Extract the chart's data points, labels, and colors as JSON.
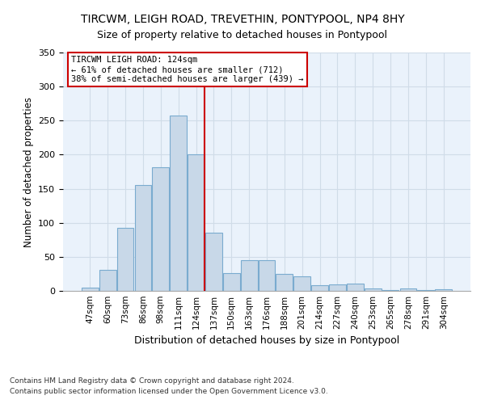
{
  "title": "TIRCWM, LEIGH ROAD, TREVETHIN, PONTYPOOL, NP4 8HY",
  "subtitle": "Size of property relative to detached houses in Pontypool",
  "xlabel": "Distribution of detached houses by size in Pontypool",
  "ylabel": "Number of detached properties",
  "categories": [
    "47sqm",
    "60sqm",
    "73sqm",
    "86sqm",
    "98sqm",
    "111sqm",
    "124sqm",
    "137sqm",
    "150sqm",
    "163sqm",
    "176sqm",
    "188sqm",
    "201sqm",
    "214sqm",
    "227sqm",
    "240sqm",
    "253sqm",
    "265sqm",
    "278sqm",
    "291sqm",
    "304sqm"
  ],
  "values": [
    5,
    31,
    93,
    155,
    181,
    258,
    200,
    85,
    26,
    45,
    45,
    25,
    21,
    8,
    10,
    11,
    4,
    1,
    3,
    1,
    2
  ],
  "bar_color": "#c8d8e8",
  "bar_edge_color": "#7aabcf",
  "marker_index": 6.5,
  "marker_label": "TIRCWM LEIGH ROAD: 124sqm",
  "marker_line_color": "#cc0000",
  "annotation_line1": "← 61% of detached houses are smaller (712)",
  "annotation_line2": "38% of semi-detached houses are larger (439) →",
  "annotation_box_color": "#ffffff",
  "annotation_box_edge": "#cc0000",
  "grid_color": "#d0dce8",
  "background_color": "#eaf2fb",
  "ylim": [
    0,
    350
  ],
  "yticks": [
    0,
    50,
    100,
    150,
    200,
    250,
    300,
    350
  ],
  "footnote1": "Contains HM Land Registry data © Crown copyright and database right 2024.",
  "footnote2": "Contains public sector information licensed under the Open Government Licence v3.0."
}
